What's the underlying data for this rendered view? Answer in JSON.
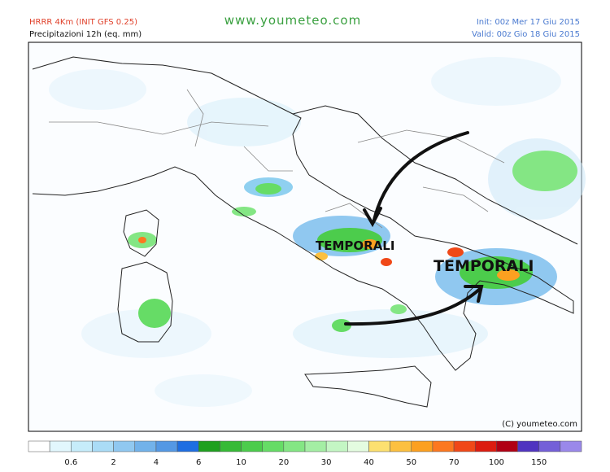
{
  "header": {
    "model": "HRRR 4Km (INIT GFS 0.25)",
    "product": "Precipitazioni 12h (eq. mm)",
    "site": "www.youmeteo.com",
    "init": "Init: 00z Mer   17 Giu 2015",
    "valid": "Valid: 00z Gio   18 Giu 2015"
  },
  "annotations": [
    "TEMPORALI",
    "TEMPORALI"
  ],
  "footer": {
    "copyright": "(C) youmeteo.com"
  },
  "legend": {
    "labels": [
      0.6,
      2,
      4,
      6,
      10,
      20,
      30,
      40,
      50,
      70,
      100,
      150
    ],
    "colors": [
      "#ffffff",
      "#e2f7fd",
      "#c6ecfa",
      "#aadcf6",
      "#90c8f0",
      "#72b2ea",
      "#5498e4",
      "#1e6ee2",
      "#1fa01f",
      "#36ba36",
      "#4ccc4c",
      "#66dc66",
      "#84e684",
      "#a4eea4",
      "#c4f6c4",
      "#e4fce0",
      "#fce070",
      "#fcc040",
      "#fca020",
      "#fc7820",
      "#f04818",
      "#dc1c10",
      "#b00014",
      "#5034c0",
      "#7460d8",
      "#9a88ea"
    ]
  }
}
